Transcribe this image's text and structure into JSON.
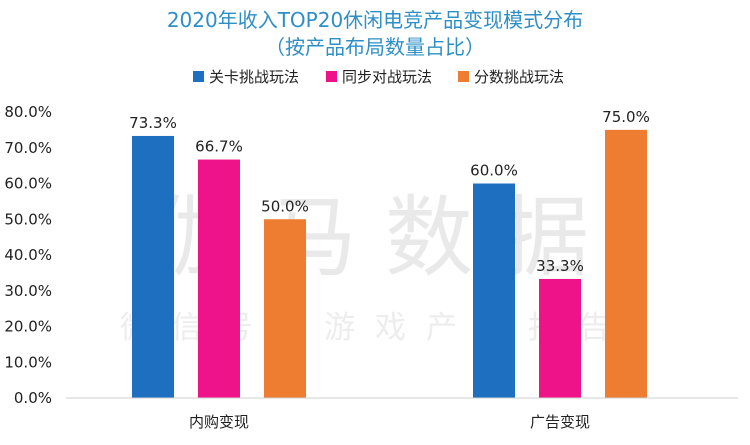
{
  "chart_data": {
    "type": "bar",
    "title": "2020年收入TOP20休闲电竞产品变现模式分布",
    "subtitle": "（按产品布局数量占比）",
    "categories": [
      "内购变现",
      "广告变现"
    ],
    "series": [
      {
        "name": "关卡挑战玩法",
        "color": "#1f6fc0",
        "values": [
          73.3,
          60.0
        ],
        "labels": [
          "73.3%",
          "60.0%"
        ]
      },
      {
        "name": "同步对战玩法",
        "color": "#ee1389",
        "values": [
          66.7,
          33.3
        ],
        "labels": [
          "66.7%",
          "33.3%"
        ]
      },
      {
        "name": "分数挑战玩法",
        "color": "#ee7d31",
        "values": [
          50.0,
          75.0
        ],
        "labels": [
          "50.0%",
          "75.0%"
        ]
      }
    ],
    "ylim": [
      0,
      80
    ],
    "yticks": [
      "0.0%",
      "10.0%",
      "20.0%",
      "30.0%",
      "40.0%",
      "50.0%",
      "60.0%",
      "70.0%",
      "80.0%"
    ],
    "legend_position": "top",
    "grid": false
  },
  "watermark": {
    "main": "伽马数据",
    "sub": "微信号：游戏产业报告"
  }
}
